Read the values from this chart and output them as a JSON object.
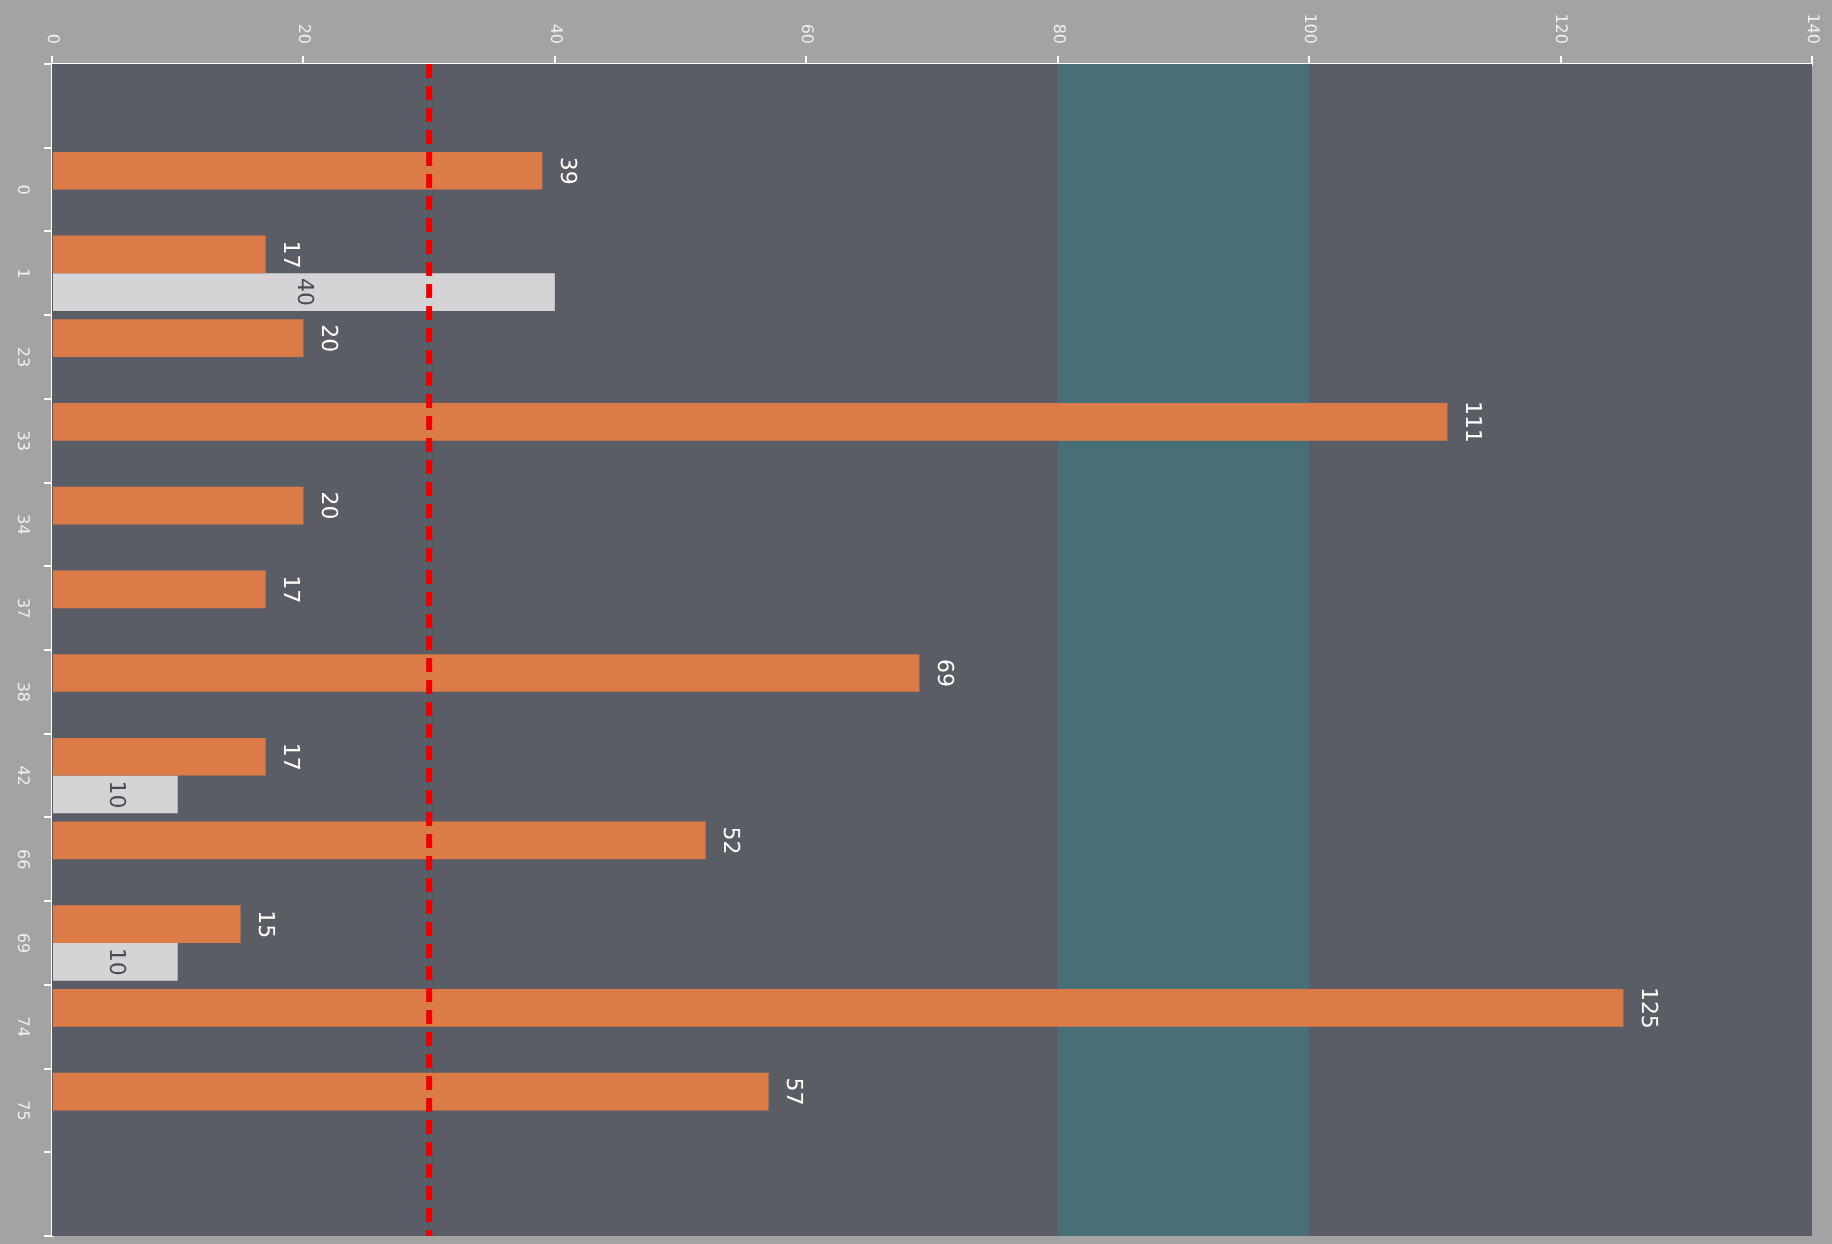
{
  "chart_data": {
    "type": "bar",
    "orientation": "horizontal",
    "categories": [
      "0",
      "1",
      "23",
      "33",
      "34",
      "37",
      "38",
      "42",
      "66",
      "69",
      "74",
      "75"
    ],
    "series": [
      {
        "color": "#db7b47",
        "values": [
          39,
          17,
          20,
          111,
          20,
          17,
          69,
          17,
          52,
          15,
          125,
          57
        ]
      },
      {
        "color": "#d4d4d6",
        "values": [
          null,
          40,
          null,
          null,
          null,
          null,
          null,
          10,
          null,
          10,
          null,
          null
        ]
      }
    ],
    "xlim": [
      0,
      140
    ],
    "xticks": [
      0,
      20,
      40,
      60,
      80,
      100,
      120,
      140
    ],
    "ref_lines": [
      {
        "axis": "x",
        "value": 30,
        "color": "#ee0000",
        "line_style": "dashed"
      }
    ],
    "bands": [
      {
        "axis": "x",
        "from": 80,
        "to": 100,
        "color": "#486e76"
      }
    ],
    "data_labels": true
  }
}
